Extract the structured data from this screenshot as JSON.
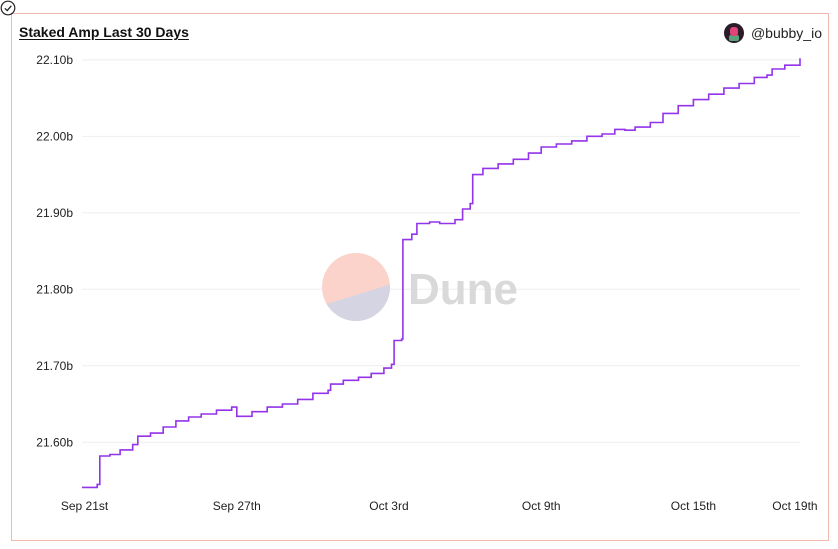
{
  "header": {
    "title": "Staked Amp Last 30 Days",
    "author": "@bubby_io"
  },
  "watermark": {
    "text": "Dune"
  },
  "icons": {
    "avatar": "user-avatar",
    "status": "check-circle-icon"
  },
  "colors": {
    "line": "#9333ea",
    "grid": "#eeeeee",
    "border": "#f2b8ad"
  },
  "chart_data": {
    "type": "line",
    "title": "Staked Amp Last 30 Days",
    "xlabel": "",
    "ylabel": "",
    "x_ticks": [
      {
        "label": "Sep 21st",
        "day": 0
      },
      {
        "label": "Sep 27th",
        "day": 6
      },
      {
        "label": "Oct 3rd",
        "day": 12
      },
      {
        "label": "Oct 9th",
        "day": 18
      },
      {
        "label": "Oct 15th",
        "day": 24
      },
      {
        "label": "Oct 19th",
        "day": 28
      }
    ],
    "y_ticks": [
      {
        "label": "21.60b",
        "value": 21.6
      },
      {
        "label": "21.70b",
        "value": 21.7
      },
      {
        "label": "21.80b",
        "value": 21.8
      },
      {
        "label": "21.90b",
        "value": 21.9
      },
      {
        "label": "22.00b",
        "value": 22.0
      },
      {
        "label": "22.10b",
        "value": 22.1
      }
    ],
    "ylim": [
      21.535,
      22.105
    ],
    "xlim": [
      -0.1,
      28.2
    ],
    "grid": true,
    "series": [
      {
        "values": [
          [
            -0.1,
            21.541
          ],
          [
            0.5,
            21.545
          ],
          [
            0.6,
            21.582
          ],
          [
            1.0,
            21.584
          ],
          [
            1.4,
            21.59
          ],
          [
            1.9,
            21.597
          ],
          [
            2.1,
            21.608
          ],
          [
            2.6,
            21.612
          ],
          [
            3.1,
            21.62
          ],
          [
            3.6,
            21.628
          ],
          [
            4.1,
            21.633
          ],
          [
            4.6,
            21.637
          ],
          [
            5.2,
            21.642
          ],
          [
            5.8,
            21.646
          ],
          [
            6.0,
            21.634
          ],
          [
            6.6,
            21.64
          ],
          [
            7.2,
            21.646
          ],
          [
            7.8,
            21.65
          ],
          [
            8.4,
            21.656
          ],
          [
            9.0,
            21.664
          ],
          [
            9.6,
            21.668
          ],
          [
            9.7,
            21.676
          ],
          [
            10.2,
            21.681
          ],
          [
            10.8,
            21.685
          ],
          [
            11.3,
            21.69
          ],
          [
            11.8,
            21.697
          ],
          [
            12.1,
            21.702
          ],
          [
            12.2,
            21.733
          ],
          [
            12.5,
            21.735
          ],
          [
            12.55,
            21.865
          ],
          [
            12.9,
            21.872
          ],
          [
            13.1,
            21.886
          ],
          [
            13.6,
            21.888
          ],
          [
            14.0,
            21.886
          ],
          [
            14.6,
            21.891
          ],
          [
            14.9,
            21.905
          ],
          [
            15.2,
            21.912
          ],
          [
            15.3,
            21.95
          ],
          [
            15.7,
            21.958
          ],
          [
            16.3,
            21.964
          ],
          [
            16.9,
            21.97
          ],
          [
            17.5,
            21.978
          ],
          [
            18.0,
            21.986
          ],
          [
            18.6,
            21.99
          ],
          [
            19.2,
            21.994
          ],
          [
            19.8,
            22.0
          ],
          [
            20.4,
            22.003
          ],
          [
            20.9,
            22.009
          ],
          [
            21.3,
            22.008
          ],
          [
            21.7,
            22.012
          ],
          [
            22.3,
            22.018
          ],
          [
            22.8,
            22.03
          ],
          [
            23.4,
            22.04
          ],
          [
            24.0,
            22.048
          ],
          [
            24.6,
            22.055
          ],
          [
            25.2,
            22.063
          ],
          [
            25.8,
            22.069
          ],
          [
            26.4,
            22.077
          ],
          [
            26.9,
            22.08
          ],
          [
            27.1,
            22.088
          ],
          [
            27.6,
            22.093
          ],
          [
            28.2,
            22.102
          ]
        ]
      }
    ]
  }
}
